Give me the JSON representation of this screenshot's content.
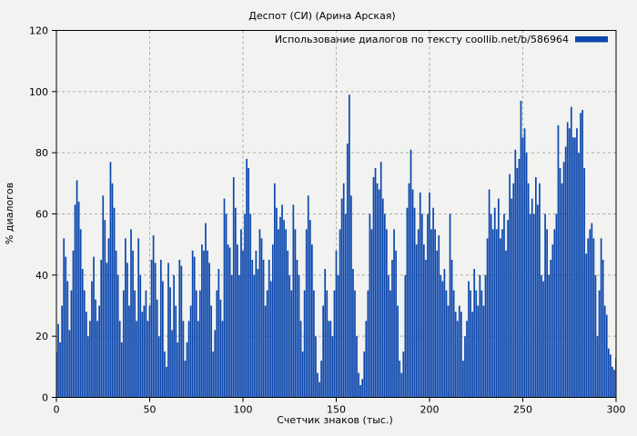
{
  "chart_data": {
    "type": "bar",
    "title": "Деспот (СИ) (Арина Арская)",
    "legend": "Использование диалогов по тексту coollib.net/b/586964",
    "legend_position": "top-right",
    "xlabel": "Счетчик знаков (тыс.)",
    "ylabel": "% диалогов",
    "xlim": [
      0,
      300
    ],
    "ylim": [
      0,
      120
    ],
    "xticks": [
      0,
      50,
      100,
      150,
      200,
      250,
      300
    ],
    "yticks": [
      0,
      20,
      40,
      60,
      80,
      100,
      120
    ],
    "grid": true,
    "bar_color": "#0c47ad",
    "grid_color": "#aaaaaa",
    "background_color": "#f2f2f0",
    "axis_color": "#000000",
    "x_start": 0,
    "x_step": 1,
    "values": [
      15,
      24,
      18,
      30,
      52,
      46,
      38,
      22,
      35,
      48,
      63,
      71,
      64,
      55,
      42,
      35,
      28,
      20,
      25,
      38,
      46,
      32,
      25,
      30,
      45,
      66,
      58,
      44,
      52,
      77,
      70,
      62,
      48,
      40,
      25,
      18,
      35,
      52,
      44,
      30,
      55,
      48,
      35,
      25,
      52,
      40,
      28,
      30,
      35,
      25,
      30,
      45,
      53,
      44,
      32,
      20,
      45,
      38,
      15,
      10,
      44,
      36,
      22,
      40,
      30,
      18,
      45,
      43,
      25,
      12,
      18,
      25,
      30,
      48,
      46,
      35,
      25,
      35,
      50,
      48,
      57,
      48,
      44,
      30,
      15,
      22,
      35,
      42,
      32,
      25,
      65,
      60,
      50,
      49,
      40,
      72,
      62,
      50,
      40,
      55,
      48,
      60,
      78,
      75,
      60,
      45,
      40,
      48,
      42,
      55,
      52,
      45,
      30,
      35,
      45,
      38,
      50,
      70,
      62,
      55,
      59,
      63,
      58,
      55,
      48,
      40,
      35,
      63,
      55,
      45,
      40,
      25,
      15,
      35,
      55,
      66,
      58,
      50,
      35,
      20,
      8,
      5,
      12,
      30,
      42,
      35,
      25,
      25,
      20,
      35,
      48,
      40,
      55,
      65,
      70,
      60,
      83,
      99,
      66,
      42,
      35,
      20,
      8,
      4,
      6,
      15,
      25,
      35,
      60,
      55,
      72,
      75,
      70,
      68,
      77,
      65,
      60,
      55,
      40,
      35,
      45,
      55,
      48,
      30,
      12,
      8,
      15,
      40,
      62,
      70,
      81,
      68,
      62,
      50,
      55,
      67,
      60,
      50,
      45,
      60,
      67,
      55,
      62,
      55,
      48,
      53,
      40,
      38,
      42,
      35,
      30,
      60,
      45,
      35,
      28,
      25,
      30,
      28,
      12,
      20,
      25,
      38,
      35,
      28,
      42,
      35,
      30,
      40,
      35,
      30,
      40,
      52,
      68,
      60,
      55,
      62,
      55,
      65,
      52,
      55,
      60,
      48,
      58,
      73,
      65,
      70,
      81,
      75,
      78,
      97,
      85,
      88,
      80,
      70,
      60,
      65,
      60,
      72,
      63,
      70,
      40,
      38,
      60,
      55,
      40,
      45,
      50,
      55,
      60,
      89,
      75,
      70,
      77,
      82,
      90,
      88,
      95,
      85,
      85,
      88,
      80,
      93,
      94,
      75,
      47,
      52,
      55,
      57,
      52,
      40,
      20,
      35,
      52,
      45,
      30,
      27,
      16,
      14,
      10,
      9,
      13
    ]
  }
}
